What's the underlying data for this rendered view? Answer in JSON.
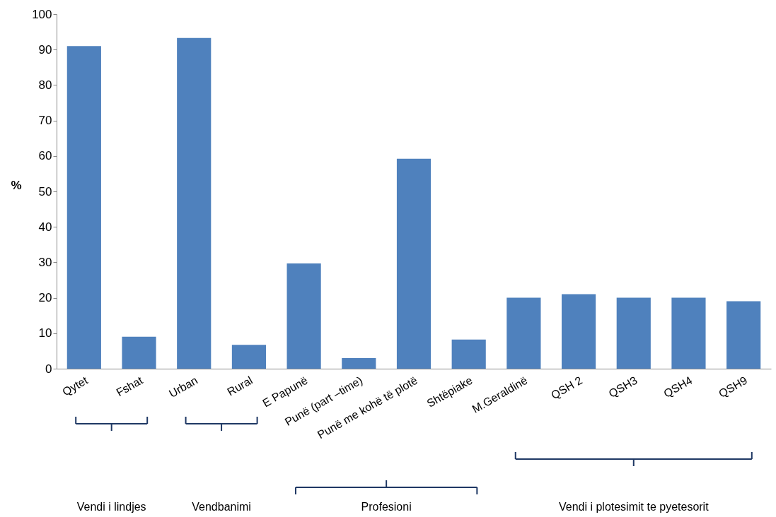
{
  "chart_data": {
    "type": "bar",
    "ylabel": "%",
    "categories": [
      "Qytet",
      "Fshat",
      "Urban",
      "Rural",
      "E Papunë",
      "Punë (part –time)",
      "Punë me kohë të plotë",
      "Shtëpiake",
      "M.Geraldinë",
      "QSH 2",
      "QSH3",
      "QSH4",
      "QSH9"
    ],
    "values": [
      91,
      9,
      93.3,
      6.7,
      29.7,
      3,
      59.2,
      8.2,
      20,
      21,
      20,
      20,
      19
    ],
    "color": "#4f81bd",
    "ylim": [
      0,
      100
    ],
    "yticks": [
      0,
      10,
      20,
      30,
      40,
      50,
      60,
      70,
      80,
      90,
      100
    ],
    "grid": false,
    "annotations": [
      "Vendi i lindjes",
      "Vendbanimi",
      "Profesioni",
      "Vendi i plotesimit te pyetesorit"
    ]
  }
}
